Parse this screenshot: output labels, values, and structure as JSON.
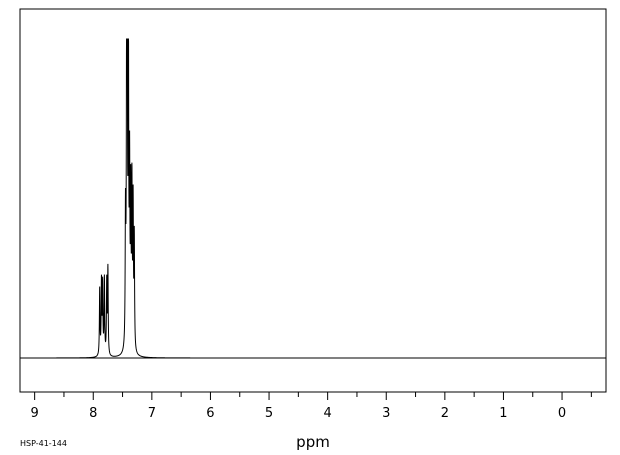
{
  "chart_data": {
    "type": "line",
    "title": "",
    "xlabel": "ppm",
    "ylabel": "",
    "xlim": [
      9.25,
      -0.75
    ],
    "ylim": [
      -0.1,
      1.0
    ],
    "x_reversed": true,
    "grid": false,
    "ticks": [
      9,
      8,
      7,
      6,
      5,
      4,
      3,
      2,
      1,
      0
    ],
    "tick_labels": [
      "9",
      "8",
      "7",
      "6",
      "5",
      "4",
      "3",
      "2",
      "1",
      "0"
    ],
    "series": [
      {
        "peaks": [
          {
            "x": 7.89,
            "h": 0.21
          },
          {
            "x": 7.86,
            "h": 0.23
          },
          {
            "x": 7.84,
            "h": 0.22
          },
          {
            "x": 7.81,
            "h": 0.24
          },
          {
            "x": 7.77,
            "h": 0.23
          },
          {
            "x": 7.75,
            "h": 0.27
          },
          {
            "x": 7.45,
            "h": 0.4
          },
          {
            "x": 7.43,
            "h": 1.0
          },
          {
            "x": 7.42,
            "h": 0.7
          },
          {
            "x": 7.4,
            "h": 0.97
          },
          {
            "x": 7.38,
            "h": 0.55
          },
          {
            "x": 7.36,
            "h": 0.47
          },
          {
            "x": 7.34,
            "h": 0.5
          },
          {
            "x": 7.32,
            "h": 0.45
          },
          {
            "x": 7.3,
            "h": 0.35
          }
        ]
      }
    ]
  },
  "footer": {
    "sample_id": "HSP-41-144"
  }
}
